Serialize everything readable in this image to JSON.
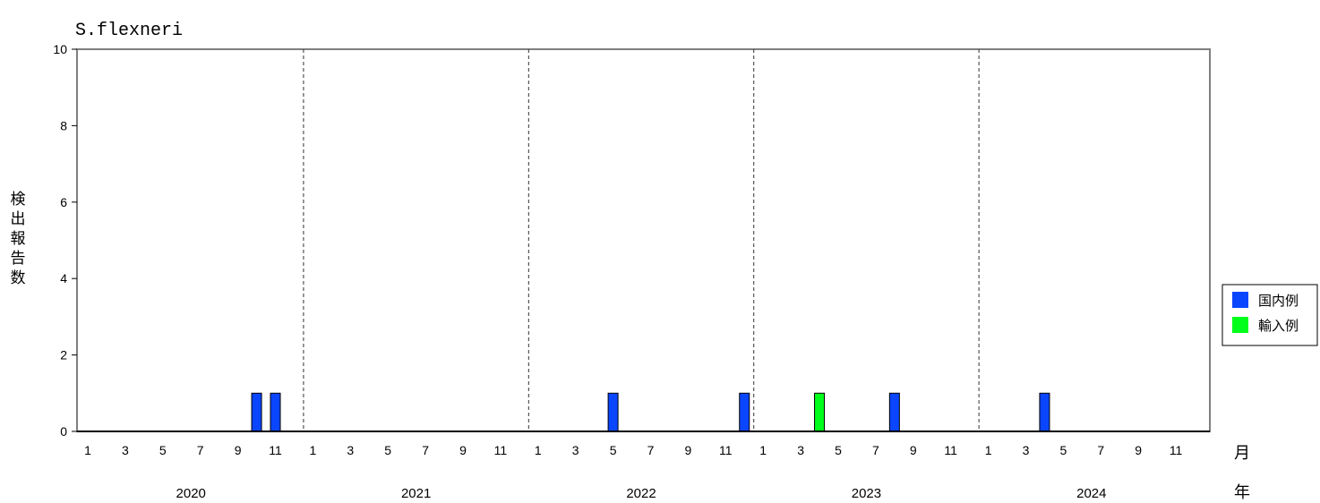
{
  "chart_data": {
    "type": "bar",
    "title": "S.flexneri",
    "ylabel": "検出報告数",
    "ylim": [
      0,
      10
    ],
    "yticks": [
      0,
      2,
      4,
      6,
      8,
      10
    ],
    "month_unit_label": "月",
    "year_unit_label": "年",
    "years": [
      "2020",
      "2021",
      "2022",
      "2023",
      "2024"
    ],
    "month_tick_labels": [
      "1",
      "3",
      "5",
      "7",
      "9",
      "11"
    ],
    "grid": false,
    "year_separators": "dashed",
    "legend_position": "right",
    "series": [
      {
        "name": "国内例",
        "color": "#0a46ff",
        "points": [
          {
            "year": "2020",
            "month": 10,
            "value": 1
          },
          {
            "year": "2020",
            "month": 11,
            "value": 1
          },
          {
            "year": "2022",
            "month": 5,
            "value": 1
          },
          {
            "year": "2022",
            "month": 12,
            "value": 1
          },
          {
            "year": "2023",
            "month": 8,
            "value": 1
          },
          {
            "year": "2024",
            "month": 4,
            "value": 1
          }
        ]
      },
      {
        "name": "輸入例",
        "color": "#00ff1a",
        "points": [
          {
            "year": "2023",
            "month": 4,
            "value": 1
          }
        ]
      }
    ]
  }
}
